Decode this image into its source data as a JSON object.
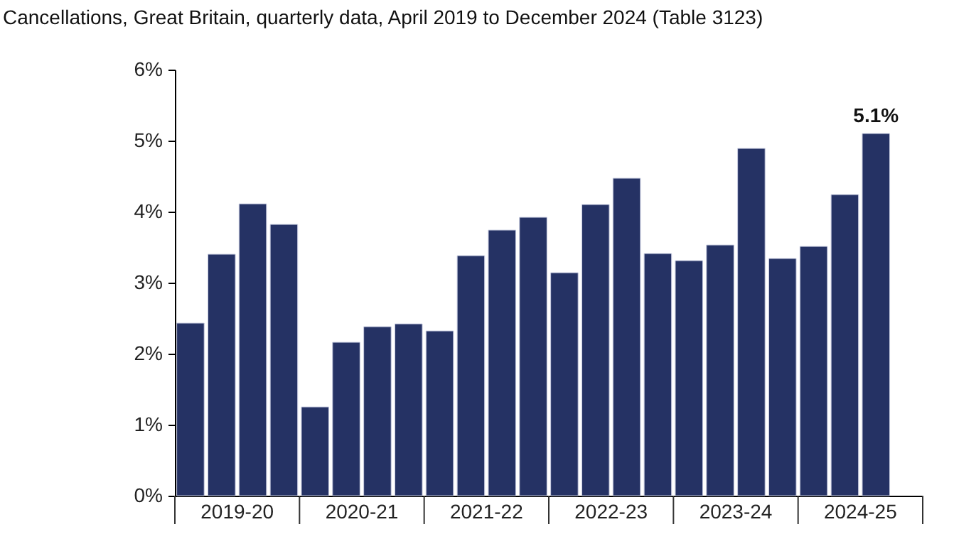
{
  "chart_data": {
    "type": "bar",
    "title": "Cancellations, Great Britain, quarterly data, April 2019 to December 2024 (Table 3123)",
    "categories": [
      null,
      null,
      null,
      null,
      null,
      null,
      null,
      null,
      null,
      null,
      null,
      null,
      null,
      null,
      null,
      null,
      null,
      null,
      null,
      null,
      null,
      null,
      null,
      null
    ],
    "values": [
      2.43,
      3.4,
      4.11,
      3.82,
      1.25,
      2.16,
      2.38,
      2.42,
      2.32,
      3.38,
      3.74,
      3.92,
      3.14,
      4.1,
      4.47,
      3.41,
      3.31,
      3.53,
      4.89,
      3.34,
      3.51,
      4.24,
      5.1,
      null
    ],
    "value_labels": [
      null,
      null,
      null,
      null,
      null,
      null,
      null,
      null,
      null,
      null,
      null,
      null,
      null,
      null,
      null,
      null,
      null,
      null,
      null,
      null,
      null,
      null,
      "5.1%",
      null
    ],
    "color": "#253264",
    "ylim": [
      0,
      6
    ],
    "yticks": [
      {
        "value": 0,
        "label": "0%"
      },
      {
        "value": 1,
        "label": "1%"
      },
      {
        "value": 2,
        "label": "2%"
      },
      {
        "value": 3,
        "label": "3%"
      },
      {
        "value": 4,
        "label": "4%"
      },
      {
        "value": 5,
        "label": "5%"
      },
      {
        "value": 6,
        "label": "6%"
      }
    ],
    "annotations": [
      "2019-20",
      "2020-21",
      "2021-22",
      "2022-23",
      "2023-24",
      "2024-25"
    ],
    "tick_labels": "y",
    "grid": false
  }
}
